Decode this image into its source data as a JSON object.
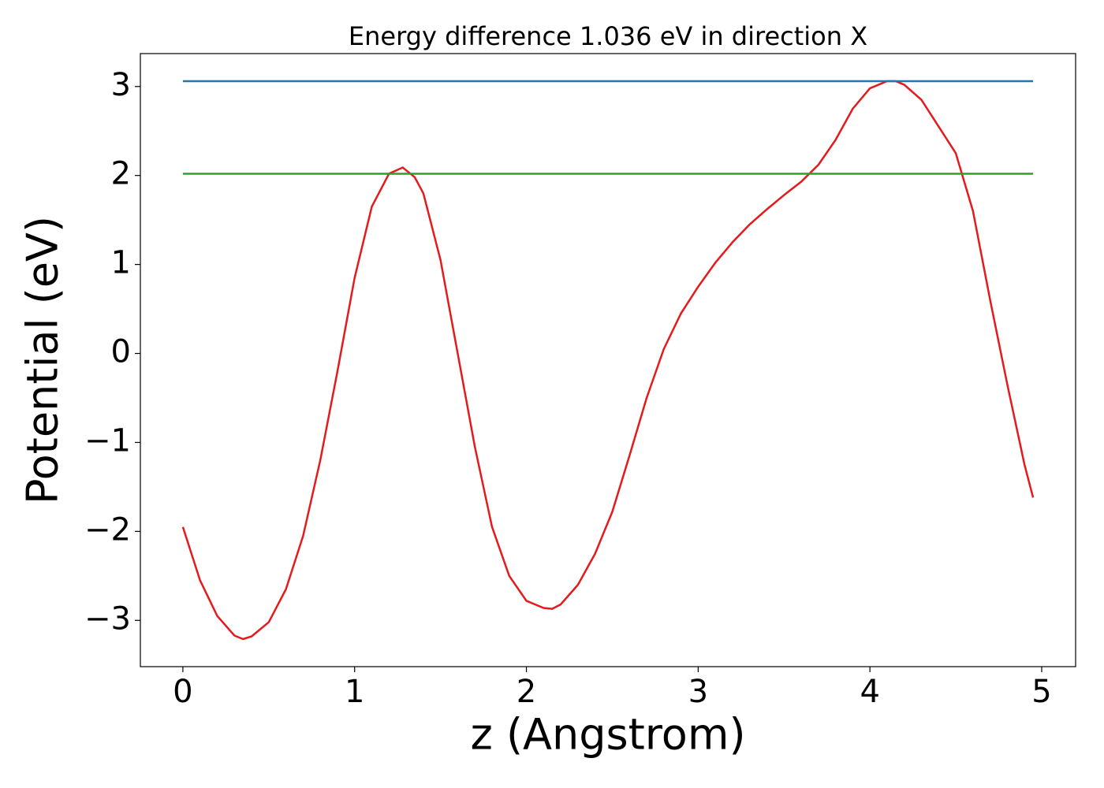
{
  "chart_data": {
    "type": "line",
    "title": "Energy difference 1.036 eV in direction X",
    "xlabel": "z (Angstrom)",
    "ylabel": "Potential (eV)",
    "xlim": [
      -0.2475,
      5.1975
    ],
    "ylim": [
      -3.52,
      3.37
    ],
    "xticks": [
      0,
      1,
      2,
      3,
      4,
      5
    ],
    "yticks": [
      {
        "value": -3,
        "label": "−3"
      },
      {
        "value": -2,
        "label": "−2"
      },
      {
        "value": -1,
        "label": "−1"
      },
      0,
      1,
      2,
      3
    ],
    "series": [
      {
        "color": "#e41a1c",
        "x": [
          0,
          0.1,
          0.2,
          0.3,
          0.35,
          0.4,
          0.5,
          0.6,
          0.7,
          0.8,
          0.9,
          1.0,
          1.1,
          1.2,
          1.28,
          1.35,
          1.4,
          1.5,
          1.6,
          1.7,
          1.8,
          1.9,
          2.0,
          2.1,
          2.15,
          2.2,
          2.3,
          2.4,
          2.5,
          2.6,
          2.7,
          2.8,
          2.9,
          3.0,
          3.1,
          3.2,
          3.3,
          3.4,
          3.5,
          3.6,
          3.7,
          3.8,
          3.9,
          4.0,
          4.1,
          4.15,
          4.2,
          4.3,
          4.4,
          4.5,
          4.6,
          4.7,
          4.8,
          4.9,
          4.95
        ],
        "values": [
          -1.95,
          -2.55,
          -2.95,
          -3.17,
          -3.21,
          -3.18,
          -3.02,
          -2.65,
          -2.05,
          -1.2,
          -0.2,
          0.85,
          1.65,
          2.02,
          2.09,
          1.98,
          1.8,
          1.05,
          0.0,
          -1.05,
          -1.95,
          -2.5,
          -2.78,
          -2.86,
          -2.87,
          -2.82,
          -2.6,
          -2.25,
          -1.78,
          -1.15,
          -0.5,
          0.05,
          0.45,
          0.75,
          1.02,
          1.25,
          1.45,
          1.62,
          1.78,
          1.93,
          2.12,
          2.4,
          2.75,
          2.98,
          3.06,
          3.06,
          3.02,
          2.85,
          2.55,
          2.25,
          1.6,
          0.6,
          -0.35,
          -1.25,
          -1.62
        ]
      },
      {
        "color": "#1f77b4",
        "x": [
          0,
          4.95
        ],
        "values": [
          3.06,
          3.06
        ]
      },
      {
        "color": "#2ca02c",
        "x": [
          0,
          4.95
        ],
        "values": [
          2.02,
          2.02
        ]
      }
    ]
  }
}
